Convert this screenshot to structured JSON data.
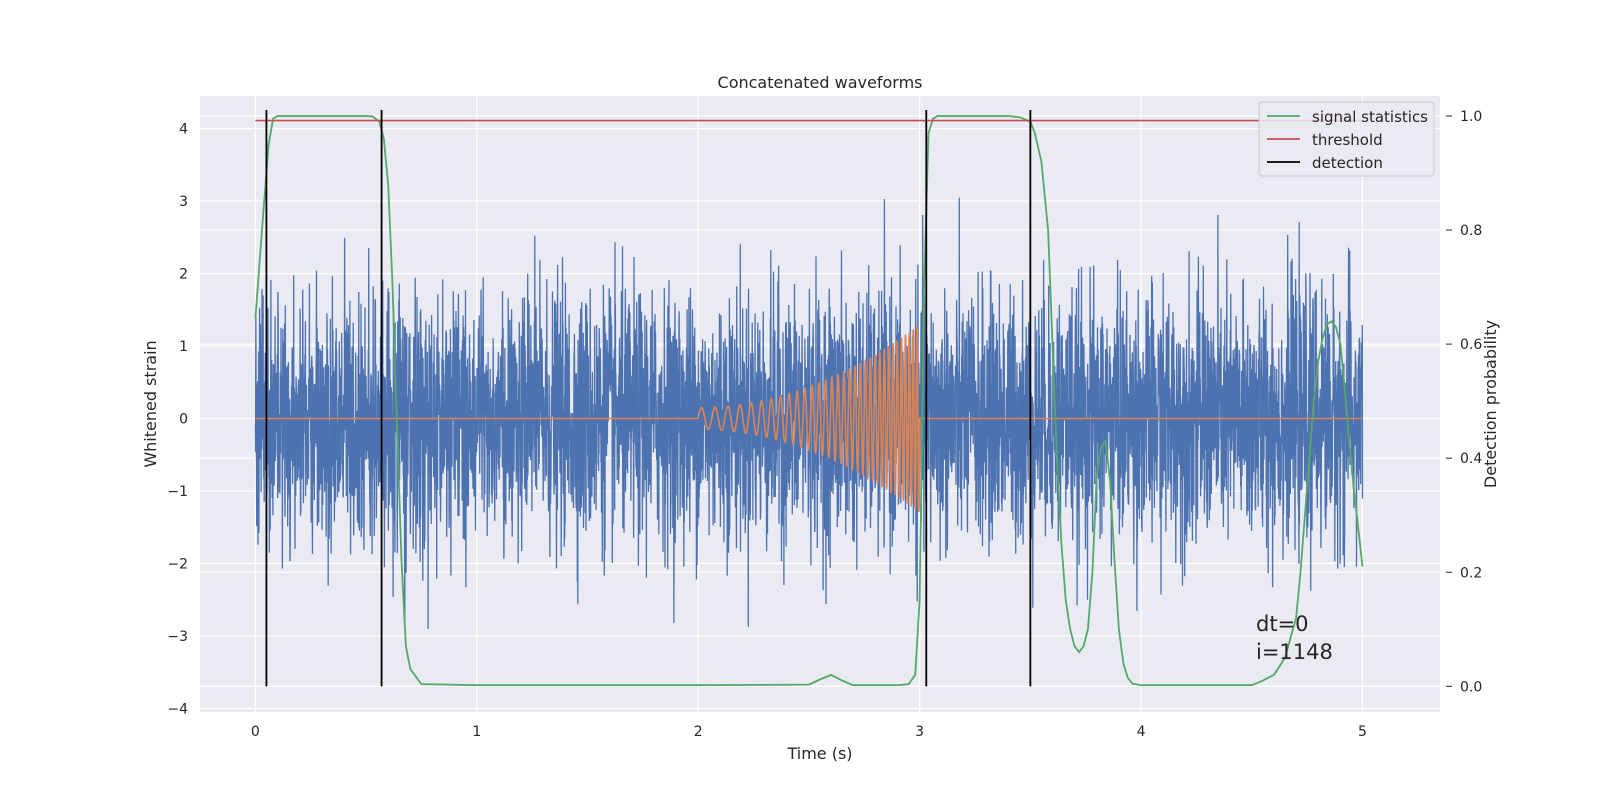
{
  "chart_data": {
    "type": "line",
    "title": "Concatenated waveforms",
    "xlabel": "Time (s)",
    "ylabel": "Whitened strain",
    "y2label": "Detection probability",
    "xlim": [
      -0.25,
      5.35
    ],
    "ylim": [
      -4.05,
      4.45
    ],
    "y2lim": [
      -0.045,
      1.035
    ],
    "x_ticks": [
      "0",
      "1",
      "2",
      "3",
      "4",
      "5"
    ],
    "y_ticks": [
      "−4",
      "−3",
      "−2",
      "−1",
      "0",
      "1",
      "2",
      "3",
      "4"
    ],
    "y2_ticks": [
      "0.0",
      "0.2",
      "0.4",
      "0.6",
      "0.8",
      "1.0"
    ],
    "grid": true,
    "legend_placement": "top-right",
    "legend": [
      {
        "label": "signal statistics",
        "color": "#55a868"
      },
      {
        "label": "threshold",
        "color": "#c44e52"
      },
      {
        "label": "detection",
        "color": "#000000"
      }
    ],
    "series": [
      {
        "description_key": "strain",
        "color": "#4c72b0",
        "x_range": [
          0,
          5
        ],
        "noise_std_estimate": 0.85
      },
      {
        "description_key": "injected-chirp",
        "color": "#dd8452",
        "x_start": 2.0,
        "x_end": 3.0,
        "amplitude_start": 0.15,
        "amplitude_end": 1.3,
        "freq_start_hz": 16,
        "freq_end_hz": 60
      },
      {
        "name": "signal statistics",
        "axis": "right",
        "color": "#55a868",
        "x": [
          0.0,
          0.03,
          0.06,
          0.08,
          0.1,
          0.2,
          0.3,
          0.4,
          0.5,
          0.53,
          0.56,
          0.58,
          0.6,
          0.62,
          0.64,
          0.66,
          0.68,
          0.7,
          0.75,
          1.0,
          1.5,
          2.0,
          2.5,
          2.55,
          2.6,
          2.65,
          2.7,
          2.9,
          2.95,
          2.98,
          3.0,
          3.02,
          3.04,
          3.06,
          3.08,
          3.1,
          3.2,
          3.3,
          3.4,
          3.45,
          3.5,
          3.52,
          3.55,
          3.58,
          3.6,
          3.62,
          3.64,
          3.66,
          3.68,
          3.7,
          3.72,
          3.74,
          3.76,
          3.78,
          3.8,
          3.82,
          3.84,
          3.86,
          3.88,
          3.9,
          3.92,
          3.94,
          3.96,
          4.0,
          4.5,
          4.55,
          4.6,
          4.65,
          4.7,
          4.72,
          4.74,
          4.76,
          4.78,
          4.8,
          4.82,
          4.84,
          4.86,
          4.88,
          4.9,
          4.92,
          4.94,
          4.96,
          4.98,
          5.0
        ],
        "y": [
          0.645,
          0.8,
          0.95,
          0.995,
          1.0,
          1.0,
          1.0,
          1.0,
          1.0,
          0.999,
          0.99,
          0.96,
          0.88,
          0.7,
          0.45,
          0.22,
          0.07,
          0.03,
          0.004,
          0.002,
          0.002,
          0.002,
          0.003,
          0.012,
          0.02,
          0.01,
          0.002,
          0.002,
          0.004,
          0.02,
          0.15,
          0.7,
          0.97,
          0.995,
          1.0,
          1.0,
          1.0,
          1.0,
          1.0,
          0.998,
          0.99,
          0.97,
          0.92,
          0.8,
          0.6,
          0.4,
          0.25,
          0.15,
          0.1,
          0.07,
          0.06,
          0.07,
          0.1,
          0.2,
          0.37,
          0.42,
          0.43,
          0.36,
          0.22,
          0.1,
          0.04,
          0.015,
          0.005,
          0.002,
          0.002,
          0.01,
          0.02,
          0.05,
          0.12,
          0.2,
          0.3,
          0.4,
          0.5,
          0.57,
          0.61,
          0.635,
          0.64,
          0.63,
          0.6,
          0.52,
          0.43,
          0.35,
          0.28,
          0.21
        ]
      },
      {
        "name": "threshold",
        "axis": "right",
        "color": "#c44e52",
        "x": [
          0,
          5
        ],
        "y": [
          0.992,
          0.992
        ]
      },
      {
        "name": "detection",
        "color": "#000000",
        "type": "vlines",
        "x": [
          0.05,
          0.57,
          3.03,
          3.5
        ],
        "y_range_right": [
          0.0,
          1.0
        ]
      }
    ],
    "annotation": [
      "dt=0",
      "i=1148"
    ]
  }
}
